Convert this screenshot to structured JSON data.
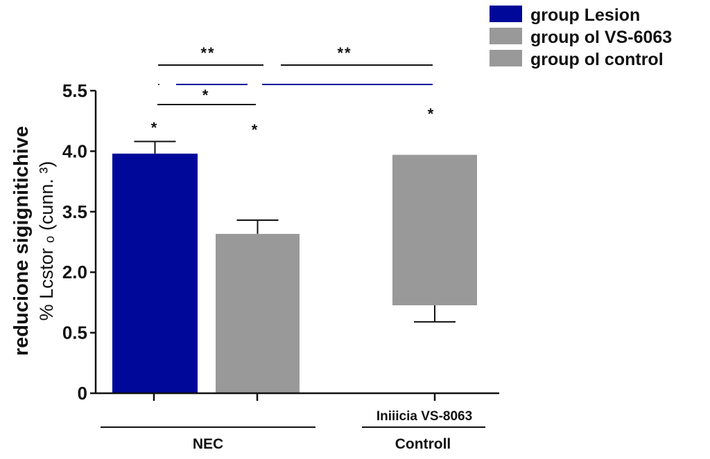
{
  "chart_data": {
    "type": "bar",
    "ylabel_line1": "reducione sigignitichive",
    "ylabel_line2": "% Lcstor ₒ (cunn. ³)",
    "yticks": [
      "0",
      "0.5",
      "2.0",
      "3.5",
      "4.0",
      "5.5"
    ],
    "ytick_values": [
      0,
      0.5,
      2.0,
      3.5,
      4.0,
      5.5
    ],
    "grid": false,
    "legend_position": "top-right",
    "legend": [
      {
        "label": "group Lesion",
        "color": "#000899"
      },
      {
        "label": "group ol VS-6063",
        "color": "#999999"
      },
      {
        "label": "group ol control",
        "color": "#999999"
      }
    ],
    "groups": [
      {
        "label": "NEC",
        "sublabel": ""
      },
      {
        "label": "Controll",
        "sublabel": "Iniiicia VS-8063"
      }
    ],
    "bars": [
      {
        "group": "NEC",
        "series": "group Lesion",
        "base": 0,
        "value": 3.98,
        "error_end": 4.24,
        "color": "#000899",
        "star": "*"
      },
      {
        "group": "NEC",
        "series": "group ol VS-6063",
        "base": 0,
        "value": 2.95,
        "error_end": 3.29,
        "color": "#999999",
        "star": "*"
      },
      {
        "group": "Controll",
        "series": "group ol control",
        "base": 1.18,
        "value": 3.97,
        "error_end": 0.77,
        "color": "#999999",
        "star": "*"
      }
    ],
    "significance": [
      {
        "label": "**",
        "color": "#111111"
      },
      {
        "label": "**",
        "color": "#111111"
      },
      {
        "label": "",
        "color": "#000899"
      },
      {
        "label": "",
        "color": "#000899"
      },
      {
        "label": "*",
        "color": "#111111"
      }
    ]
  }
}
